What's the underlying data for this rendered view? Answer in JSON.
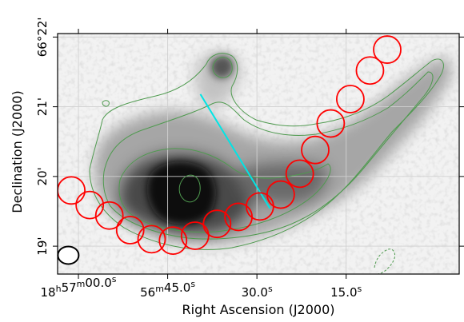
{
  "chart_data": {
    "type": "scatter",
    "title": "",
    "xlabel": "Right Ascension (J2000)",
    "ylabel": "Declination (J2000)",
    "xlim_sec": [
      63.5,
      -4.0
    ],
    "ylim_arcmin": [
      18.6,
      22.05
    ],
    "x_ticks": [
      {
        "sec": 60.0,
        "label": "18h57m00.0s",
        "parts": [
          "18",
          "h",
          "57",
          "m",
          "00.0",
          "s"
        ]
      },
      {
        "sec": 45.0,
        "label": "56m45.0s",
        "parts": [
          "",
          "",
          "56",
          "m",
          "45.0",
          "s"
        ]
      },
      {
        "sec": 30.0,
        "label": "30.0s",
        "parts": [
          "",
          "",
          "",
          "",
          "30.0",
          "s"
        ]
      },
      {
        "sec": 15.0,
        "label": "15.0s",
        "parts": [
          "",
          "",
          "",
          "",
          "15.0",
          "s"
        ]
      }
    ],
    "y_ticks": [
      {
        "arcmin": 22,
        "label": "66°22'"
      },
      {
        "arcmin": 21,
        "label": "21'"
      },
      {
        "arcmin": 20,
        "label": "20'"
      },
      {
        "arcmin": 19,
        "label": "19'"
      }
    ],
    "grid": true,
    "series": [
      {
        "marker": "circle",
        "color": "#ff0000",
        "points": [
          {
            "ra_sec": 61.2,
            "dec_arcmin": 19.8
          },
          {
            "ra_sec": 58.1,
            "dec_arcmin": 19.59
          },
          {
            "ra_sec": 54.8,
            "dec_arcmin": 19.44
          },
          {
            "ra_sec": 51.3,
            "dec_arcmin": 19.23
          },
          {
            "ra_sec": 47.7,
            "dec_arcmin": 19.1
          },
          {
            "ra_sec": 44.1,
            "dec_arcmin": 19.08
          },
          {
            "ra_sec": 40.4,
            "dec_arcmin": 19.15
          },
          {
            "ra_sec": 36.7,
            "dec_arcmin": 19.32
          },
          {
            "ra_sec": 33.1,
            "dec_arcmin": 19.42
          },
          {
            "ra_sec": 29.5,
            "dec_arcmin": 19.57
          },
          {
            "ra_sec": 26.0,
            "dec_arcmin": 19.74
          },
          {
            "ra_sec": 22.8,
            "dec_arcmin": 20.04
          },
          {
            "ra_sec": 20.2,
            "dec_arcmin": 20.38
          },
          {
            "ra_sec": 17.6,
            "dec_arcmin": 20.76
          },
          {
            "ra_sec": 14.3,
            "dec_arcmin": 21.11
          },
          {
            "ra_sec": 11.0,
            "dec_arcmin": 21.52
          },
          {
            "ra_sec": 8.1,
            "dec_arcmin": 21.82
          }
        ]
      }
    ],
    "line": {
      "color": "#00e5e5",
      "from": {
        "ra_sec": 39.5,
        "dec_arcmin": 21.18
      },
      "to": {
        "ra_sec": 27.8,
        "dec_arcmin": 19.54
      }
    },
    "beam": {
      "ra_sec": 61.7,
      "dec_arcmin": 18.87,
      "color": "#000000"
    },
    "colors": {
      "image_low": "#ffffff",
      "image_high": "#000000",
      "contour": "#4f9a4f",
      "apertures": "#ff0000",
      "cut_line": "#00e5e5"
    }
  }
}
